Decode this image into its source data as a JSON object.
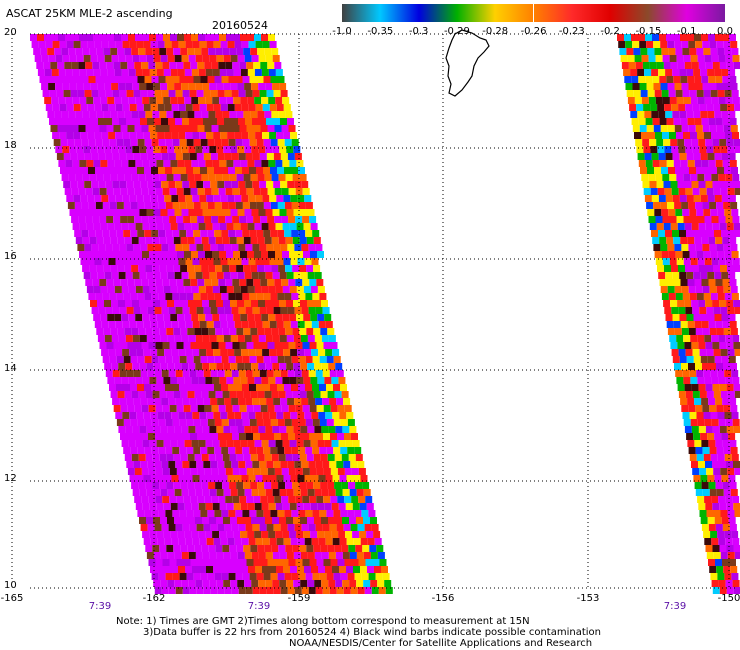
{
  "title": "ASCAT 25KM MLE-2 ascending",
  "date": "20160524",
  "colorbar": {
    "labels": [
      "-1.0",
      "-0.35",
      "-0.3",
      "-0.29",
      "-0.28",
      "-0.26",
      "-0.23",
      "-0.2",
      "-0.15",
      "-0.1",
      "0.0"
    ],
    "colors": [
      "#404040",
      "#00c8ff",
      "#0000e0",
      "#00b000",
      "#ffd000",
      "#ff8000",
      "#ff2a2a",
      "#e00000",
      "#8b4a2b",
      "#e000e0",
      "#7a1aa0"
    ]
  },
  "map": {
    "lat_labels": [
      "20",
      "18",
      "16",
      "14",
      "12",
      "10"
    ],
    "lon_labels": [
      "-165",
      "-162",
      "-159",
      "-156",
      "-153",
      "-150"
    ],
    "time_labels": [
      "7:39",
      "7:39",
      "7:39"
    ]
  },
  "notes": {
    "line1": "Note: 1) Times are GMT 2)Times along bottom correspond to measurement at 15N",
    "line2": "3)Data buffer is 22 hrs from 20160524 4) Black wind barbs indicate possible contamination",
    "line3": "NOAA/NESDIS/Center for Satellite Applications and Research"
  },
  "swath_colors": {
    "magenta": "#d800ff",
    "purple": "#b400e8",
    "red": "#ff1a1a",
    "orange": "#ff6600",
    "brown": "#7a3a1a",
    "yellow": "#ffee00",
    "green": "#00b400",
    "blue": "#0040ff",
    "cyan": "#00ccff",
    "dark": "#3a0a0a"
  }
}
